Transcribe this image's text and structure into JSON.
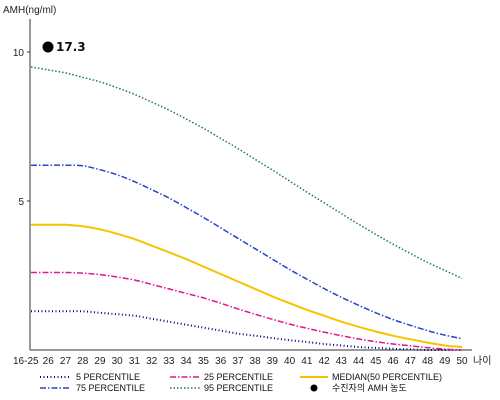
{
  "chart_data": {
    "type": "line",
    "ylabel": "AMH(ng/ml)",
    "xlabel": "나이",
    "y_ticks": [
      "10",
      "5"
    ],
    "ylim": [
      0,
      11
    ],
    "categories": [
      "16-25",
      "26",
      "27",
      "28",
      "29",
      "30",
      "31",
      "32",
      "33",
      "34",
      "35",
      "36",
      "37",
      "38",
      "39",
      "40",
      "41",
      "42",
      "43",
      "44",
      "45",
      "46",
      "47",
      "48",
      "49",
      "50"
    ],
    "grid": false,
    "legend_position": "bottom",
    "series": [
      {
        "name": "5 PERCENTILE",
        "color": "#000080",
        "dash": "1,2.5",
        "width": 2,
        "values": [
          1.3,
          1.3,
          1.3,
          1.3,
          1.25,
          1.2,
          1.15,
          1.05,
          0.95,
          0.85,
          0.75,
          0.65,
          0.55,
          0.48,
          0.4,
          0.33,
          0.27,
          0.2,
          0.15,
          0.1,
          0.07,
          0.04,
          0.02,
          0.0,
          0.0,
          0.0
        ]
      },
      {
        "name": "25 PERCENTILE",
        "color": "#e0168a",
        "dash": "6,2,1.5,2",
        "width": 1.5,
        "values": [
          2.6,
          2.6,
          2.6,
          2.58,
          2.53,
          2.45,
          2.35,
          2.2,
          2.05,
          1.9,
          1.75,
          1.57,
          1.38,
          1.2,
          1.03,
          0.87,
          0.73,
          0.6,
          0.48,
          0.37,
          0.28,
          0.2,
          0.14,
          0.08,
          0.03,
          0.0
        ]
      },
      {
        "name": "MEDIAN(50 PERCENTILE)",
        "color": "#f5c400",
        "dash": "",
        "width": 2,
        "values": [
          4.2,
          4.2,
          4.2,
          4.15,
          4.05,
          3.9,
          3.72,
          3.5,
          3.28,
          3.05,
          2.8,
          2.55,
          2.3,
          2.05,
          1.8,
          1.57,
          1.35,
          1.15,
          0.95,
          0.78,
          0.62,
          0.48,
          0.36,
          0.25,
          0.15,
          0.1
        ]
      },
      {
        "name": "75 PERCENTILE",
        "color": "#2a43c8",
        "dash": "6,2,1.5,2",
        "width": 1.5,
        "values": [
          6.2,
          6.2,
          6.2,
          6.18,
          6.05,
          5.88,
          5.65,
          5.38,
          5.1,
          4.78,
          4.45,
          4.1,
          3.75,
          3.4,
          3.05,
          2.7,
          2.38,
          2.06,
          1.77,
          1.5,
          1.25,
          1.02,
          0.83,
          0.65,
          0.5,
          0.38
        ]
      },
      {
        "name": "95 PERCENTILE",
        "color": "#1e7a4a",
        "dash": "1.5,2",
        "width": 1.5,
        "values": [
          9.5,
          9.4,
          9.3,
          9.15,
          9.0,
          8.8,
          8.58,
          8.32,
          8.05,
          7.75,
          7.44,
          7.1,
          6.76,
          6.4,
          6.04,
          5.67,
          5.3,
          4.94,
          4.58,
          4.22,
          3.88,
          3.55,
          3.24,
          2.94,
          2.67,
          2.4
        ]
      }
    ],
    "marker": {
      "label": "17.3",
      "value": 17.3,
      "legend": "수진자의 AMH 농도"
    }
  }
}
